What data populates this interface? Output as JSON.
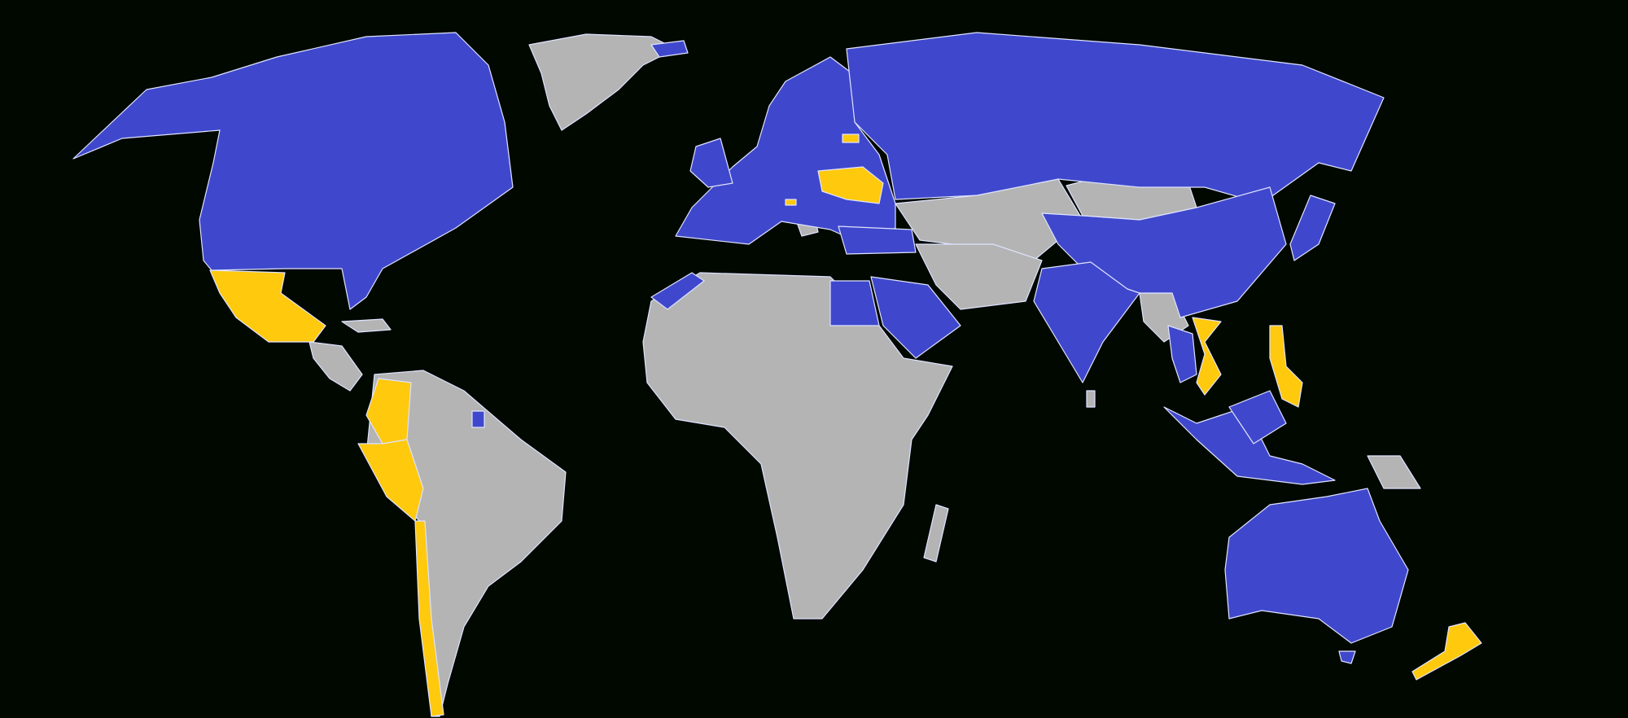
{
  "map": {
    "type": "world-choropleth",
    "projection": "equirectangular",
    "colors": {
      "background": "#000800",
      "category_blue": "#3f48cc",
      "category_yellow": "#ffc90e",
      "no_data": "#b4b4b4",
      "borders": "#dfe3ff"
    }
  }
}
